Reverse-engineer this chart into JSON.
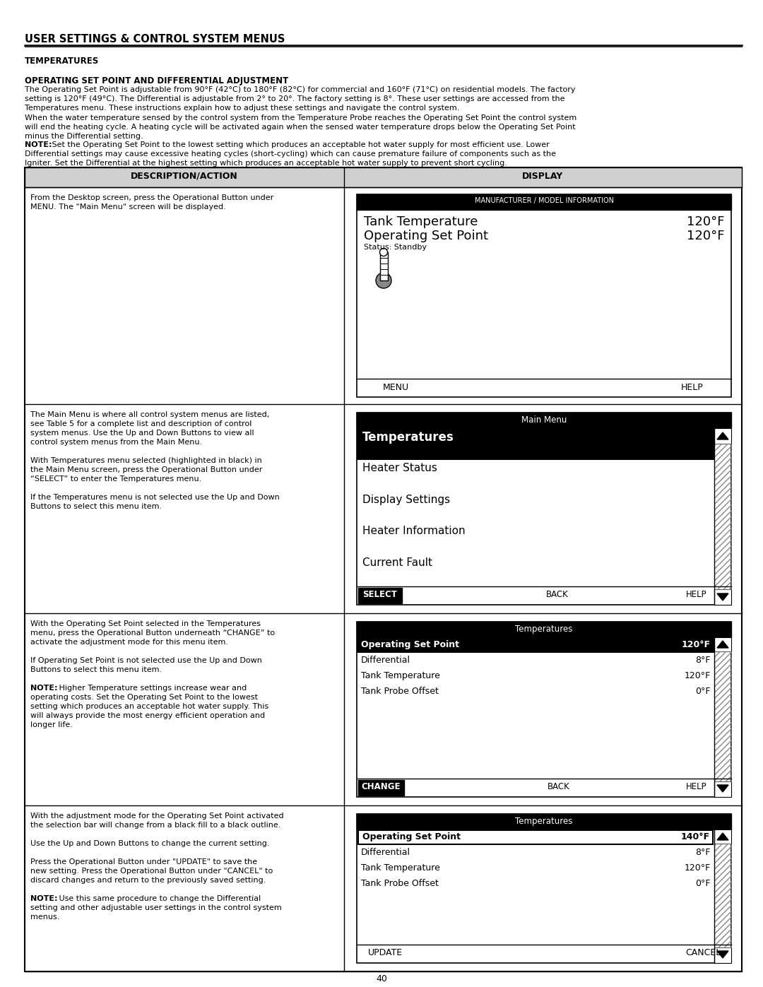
{
  "page_title": "USER SETTINGS & CONTROL SYSTEM MENUS",
  "section_title": "TEMPERATURES",
  "subsection_title": "OPERATING SET POINT AND DIFFERENTIAL ADJUSTMENT",
  "para1_line1": "The Operating Set Point is adjustable from 90°F (42°C) to 180°F (82°C) for commercial and 160°F (71°C) on residential models. The factory",
  "para1_line2": "setting is 120°F (49°C). The Differential is adjustable from 2° to 20°. The factory setting is 8°. These user settings are accessed from the",
  "para1_line3": "Temperatures menu. These instructions explain how to adjust these settings and navigate the control system.",
  "para2_line1": "When the water temperature sensed by the control system from the Temperature Probe reaches the Operating Set Point the control system",
  "para2_line2": "will end the heating cycle. A heating cycle will be activated again when the sensed water temperature drops below the Operating Set Point",
  "para2_line3": "minus the Differential setting.",
  "note_bold": "NOTE:",
  "note_line1": " Set the Operating Set Point to the lowest setting which produces an acceptable hot water supply for most efficient use. Lower",
  "note_line2": "Differential settings may cause excessive heating cycles (short-cycling) which can cause premature failure of components such as the",
  "note_line3": "Igniter. Set the Differential at the highest setting which produces an acceptable hot water supply to prevent short cycling.",
  "col1_header": "DESCRIPTION/ACTION",
  "col2_header": "DISPLAY",
  "r1_line1": "From the Desktop screen, press the Operational Button under",
  "r1_line2": "MENU. The \"Main Menu\" screen will be displayed.",
  "r2_line1": "The Main Menu is where all control system menus are listed,",
  "r2_line2": "see Table 5 for a complete list and description of control",
  "r2_line3": "system menus. Use the Up and Down Buttons to view all",
  "r2_line4": "control system menus from the Main Menu.",
  "r2_line5": "",
  "r2_line6": "With Temperatures menu selected (highlighted in black) in",
  "r2_line7": "the Main Menu screen, press the Operational Button under",
  "r2_line8": "“SELECT” to enter the Temperatures menu.",
  "r2_line9": "",
  "r2_line10": "If the Temperatures menu is not selected use the Up and Down",
  "r2_line11": "Buttons to select this menu item.",
  "r3_line1": "With the Operating Set Point selected in the Temperatures",
  "r3_line2": "menu, press the Operational Button underneath “CHANGE” to",
  "r3_line3": "activate the adjustment mode for this menu item.",
  "r3_line4": "",
  "r3_line5": "If Operating Set Point is not selected use the Up and Down",
  "r3_line6": "Buttons to select this menu item.",
  "r3_line7": "",
  "r3_note": "NOTE:",
  "r3_line8": " Higher Temperature settings increase wear and",
  "r3_line9": "operating costs. Set the Operating Set Point to the lowest",
  "r3_line10": "setting which produces an acceptable hot water supply. This",
  "r3_line11": "will always provide the most energy efficient operation and",
  "r3_line12": "longer life.",
  "r4_line1": "With the adjustment mode for the Operating Set Point activated",
  "r4_line2": "the selection bar will change from a black fill to a black outline.",
  "r4_line3": "",
  "r4_line4": "Use the Up and Down Buttons to change the current setting.",
  "r4_line5": "",
  "r4_line6": "Press the Operational Button under \"UPDATE\" to save the",
  "r4_line7": "new setting. Press the Operational Button under \"CANCEL\" to",
  "r4_line8": "discard changes and return to the previously saved setting.",
  "r4_line9": "",
  "r4_note": "NOTE:",
  "r4_line10": " Use this same procedure to change the Differential",
  "r4_line11": "setting and other adjustable user settings in the control system",
  "r4_line12": "menus.",
  "page_number": "40",
  "bg_color": "#ffffff"
}
